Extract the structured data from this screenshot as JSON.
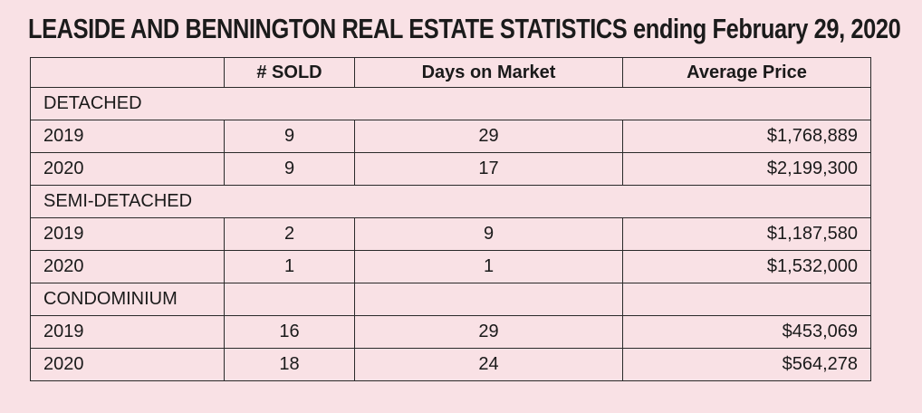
{
  "title": "LEASIDE AND BENNINGTON REAL ESTATE STATISTICS ending February 29, 2020",
  "table": {
    "headers": [
      "",
      "# SOLD",
      "Days on Market",
      "Average Price"
    ],
    "sections": [
      {
        "name": "DETACHED",
        "rows": [
          {
            "year": "2019",
            "sold": "9",
            "dom": "29",
            "price": "$1,768,889"
          },
          {
            "year": "2020",
            "sold": "9",
            "dom": "17",
            "price": "$2,199,300"
          }
        ]
      },
      {
        "name": "SEMI-DETACHED",
        "rows": [
          {
            "year": "2019",
            "sold": "2",
            "dom": "9",
            "price": "$1,187,580"
          },
          {
            "year": "2020",
            "sold": "1",
            "dom": "1",
            "price": "$1,532,000"
          }
        ]
      },
      {
        "name": "CONDOMINIUM",
        "rows": [
          {
            "year": "2019",
            "sold": "16",
            "dom": "29",
            "price": "$453,069"
          },
          {
            "year": "2020",
            "sold": "18",
            "dom": "24",
            "price": "$564,278"
          }
        ]
      }
    ]
  }
}
